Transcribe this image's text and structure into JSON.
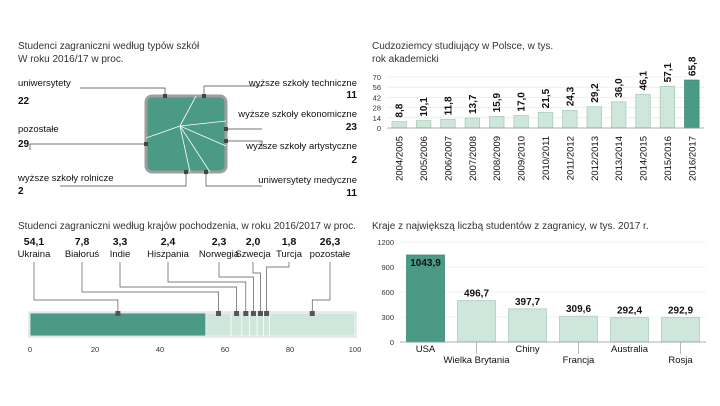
{
  "colors": {
    "dark": "#4a9a86",
    "light": "#cfe6db",
    "frame": "#9e9e9e",
    "line": "#444444"
  },
  "chart_data": [
    {
      "type": "treemap",
      "title": "Studenci zagraniczni według typów szkół",
      "subtitle": "W roku 2016/17 w proc.",
      "items": [
        {
          "name": "uniwersytety",
          "value": "22"
        },
        {
          "name": "pozostałe",
          "value": "29"
        },
        {
          "name": "wyższe szkoły rolnicze",
          "value": "2"
        },
        {
          "name": "wyższe szkoły techniczne",
          "value": "11"
        },
        {
          "name": "wyższe szkoły ekonomiczne",
          "value": "23"
        },
        {
          "name": "wyższe szkoły artystyczne",
          "value": "2"
        },
        {
          "name": "uniwersytety medyczne",
          "value": "11"
        }
      ]
    },
    {
      "type": "bar",
      "title": "Cudzoziemcy studiujący w Polsce, w tys.",
      "subtitle": "rok akademicki",
      "ylim": [
        0,
        70
      ],
      "yticks": [
        "0",
        "14",
        "28",
        "42",
        "56",
        "70"
      ],
      "categories": [
        "2004/2005",
        "2005/2006",
        "2006/2007",
        "2007/2008",
        "2008/2009",
        "2009/2010",
        "2010/2011",
        "2011/2012",
        "2012/2013",
        "2013/2014",
        "2014/2015",
        "2015/2016",
        "2016/2017"
      ],
      "values": [
        8.8,
        10.1,
        11.8,
        13.7,
        15.9,
        17.0,
        21.5,
        24.3,
        29.2,
        36.0,
        46.1,
        57.1,
        65.8
      ],
      "labels": [
        "8,8",
        "10,1",
        "11,8",
        "13,7",
        "15,9",
        "17,0",
        "21,5",
        "24,3",
        "29,2",
        "36,0",
        "46,1",
        "57,1",
        "65,8"
      ]
    },
    {
      "type": "stacked-bar",
      "title": "Studenci zagraniczni według krajów pochodzenia, w roku 2016/2017 w proc.",
      "xlim": [
        0,
        100
      ],
      "xticks": [
        "0",
        "20",
        "40",
        "60",
        "80",
        "100"
      ],
      "segments": [
        {
          "name": "Ukraina",
          "value": 54.1,
          "label": "54,1"
        },
        {
          "name": "Białoruś",
          "value": 7.8,
          "label": "7,8"
        },
        {
          "name": "Indie",
          "value": 3.3,
          "label": "3,3"
        },
        {
          "name": "Hiszpania",
          "value": 2.4,
          "label": "2,4"
        },
        {
          "name": "Norwegia",
          "value": 2.3,
          "label": "2,3"
        },
        {
          "name": "Szwecja",
          "value": 2.0,
          "label": "2,0"
        },
        {
          "name": "Turcja",
          "value": 1.8,
          "label": "1,8"
        },
        {
          "name": "pozostałe",
          "value": 26.3,
          "label": "26,3"
        }
      ]
    },
    {
      "type": "bar",
      "title": "Kraje z największą liczbą studentów z zagranicy, w tys. 2017 r.",
      "ylim": [
        0,
        1200
      ],
      "yticks": [
        "0",
        "300",
        "600",
        "900",
        "1200"
      ],
      "categories": [
        "USA",
        "Wielka Brytania",
        "Chiny",
        "Francja",
        "Australia",
        "Rosja"
      ],
      "values": [
        1043.9,
        496.7,
        397.7,
        309.6,
        292.4,
        292.9
      ],
      "labels": [
        "1043,9",
        "496,7",
        "397,7",
        "309,6",
        "292,4",
        "292,9"
      ]
    }
  ]
}
